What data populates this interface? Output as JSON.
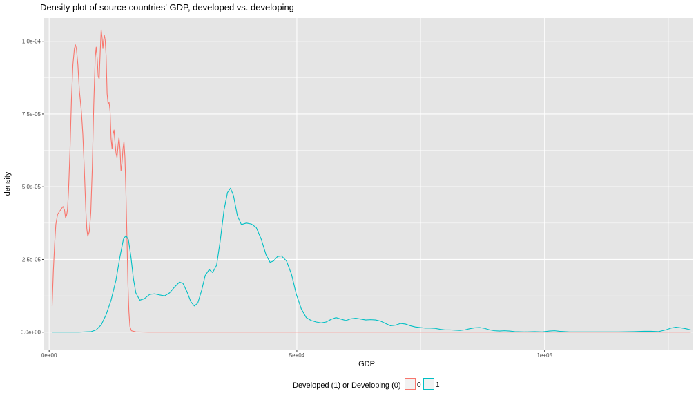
{
  "chart_data": {
    "type": "line",
    "title": "Density plot of source countries' GDP, developed vs. developing",
    "xlabel": "GDP",
    "ylabel": "density",
    "xlim": [
      -1000,
      130000
    ],
    "ylim": [
      -6e-06,
      0.000108
    ],
    "x_ticks": [
      {
        "value": 0,
        "label": "0e+00"
      },
      {
        "value": 50000,
        "label": "5e+04"
      },
      {
        "value": 100000,
        "label": "1e+05"
      }
    ],
    "x_minor_ticks": [
      25000,
      75000,
      125000
    ],
    "y_ticks": [
      {
        "value": 0,
        "label": "0.0e+00"
      },
      {
        "value": 2.5e-05,
        "label": "2.5e-05"
      },
      {
        "value": 5e-05,
        "label": "5.0e-05"
      },
      {
        "value": 7.5e-05,
        "label": "7.5e-05"
      },
      {
        "value": 0.0001,
        "label": "1.0e-04"
      }
    ],
    "y_minor_ticks": [
      1.25e-05,
      3.75e-05,
      6.25e-05,
      8.75e-05
    ],
    "grid": true,
    "colors": {
      "panel_bg": "#e5e5e5",
      "grid": "#ffffff",
      "series_0": "#f8766d",
      "series_1": "#00bfc4"
    },
    "legend": {
      "title": "Developed (1) or Developing (0)",
      "position": "bottom",
      "entries": [
        {
          "label": "0",
          "color": "#f8766d"
        },
        {
          "label": "1",
          "color": "#00bfc4"
        }
      ]
    },
    "series": [
      {
        "name": "0",
        "color": "#f8766d",
        "points": [
          [
            600,
            9e-06
          ],
          [
            850,
            2.1e-05
          ],
          [
            1100,
            3e-05
          ],
          [
            1350,
            3.7e-05
          ],
          [
            1700,
            4.05e-05
          ],
          [
            2100,
            4.15e-05
          ],
          [
            2500,
            4.25e-05
          ],
          [
            2800,
            4.32e-05
          ],
          [
            3100,
            4.2e-05
          ],
          [
            3300,
            3.95e-05
          ],
          [
            3500,
            4e-05
          ],
          [
            3700,
            4.2e-05
          ],
          [
            3900,
            4.8e-05
          ],
          [
            4200,
            6.2e-05
          ],
          [
            4500,
            8e-05
          ],
          [
            4800,
            9.2e-05
          ],
          [
            5100,
            9.75e-05
          ],
          [
            5300,
            9.88e-05
          ],
          [
            5500,
            9.75e-05
          ],
          [
            5800,
            9.2e-05
          ],
          [
            6100,
            8.3e-05
          ],
          [
            6500,
            7.6e-05
          ],
          [
            6800,
            6.8e-05
          ],
          [
            7100,
            5.6e-05
          ],
          [
            7400,
            4.2e-05
          ],
          [
            7600,
            3.55e-05
          ],
          [
            7800,
            3.3e-05
          ],
          [
            8100,
            3.45e-05
          ],
          [
            8400,
            4.1e-05
          ],
          [
            8700,
            5.6e-05
          ],
          [
            9000,
            7.8e-05
          ],
          [
            9300,
            9.45e-05
          ],
          [
            9500,
            9.8e-05
          ],
          [
            9700,
            9.4e-05
          ],
          [
            9900,
            8.8e-05
          ],
          [
            10100,
            8.7e-05
          ],
          [
            10300,
            9.6e-05
          ],
          [
            10500,
            0.000104
          ],
          [
            10700,
            0.000101
          ],
          [
            10850,
            9.75e-05
          ],
          [
            11000,
            0.0001005
          ],
          [
            11150,
            0.000102
          ],
          [
            11300,
            0.0001005
          ],
          [
            11500,
            9.5e-05
          ],
          [
            11700,
            8.2e-05
          ],
          [
            11900,
            7.85e-05
          ],
          [
            12100,
            7.9e-05
          ],
          [
            12300,
            7.6e-05
          ],
          [
            12500,
            6.65e-05
          ],
          [
            12700,
            6.3e-05
          ],
          [
            12900,
            6.8e-05
          ],
          [
            13100,
            6.95e-05
          ],
          [
            13300,
            6.5e-05
          ],
          [
            13500,
            6.15e-05
          ],
          [
            13700,
            6e-05
          ],
          [
            13900,
            6.4e-05
          ],
          [
            14100,
            6.7e-05
          ],
          [
            14300,
            6.3e-05
          ],
          [
            14500,
            5.55e-05
          ],
          [
            14700,
            5.8e-05
          ],
          [
            14900,
            6.3e-05
          ],
          [
            15100,
            6.55e-05
          ],
          [
            15300,
            6e-05
          ],
          [
            15500,
            4.8e-05
          ],
          [
            15700,
            3.3e-05
          ],
          [
            15900,
            1.7e-05
          ],
          [
            16100,
            7e-06
          ],
          [
            16300,
            2e-06
          ],
          [
            16600,
            5e-07
          ],
          [
            17500,
            1e-07
          ],
          [
            20000,
            0
          ],
          [
            40000,
            0
          ],
          [
            60000,
            0
          ],
          [
            80000,
            0
          ],
          [
            100000,
            0
          ],
          [
            129500,
            0
          ]
        ]
      },
      {
        "name": "1",
        "color": "#00bfc4",
        "points": [
          [
            600,
            0
          ],
          [
            6000,
            0
          ],
          [
            8500,
            2e-07
          ],
          [
            9500,
            8e-07
          ],
          [
            10500,
            2.5e-06
          ],
          [
            11500,
            6e-06
          ],
          [
            12500,
            1.1e-05
          ],
          [
            13500,
            1.8e-05
          ],
          [
            14300,
            2.6e-05
          ],
          [
            15000,
            3.2e-05
          ],
          [
            15500,
            3.32e-05
          ],
          [
            16000,
            3.18e-05
          ],
          [
            16500,
            2.6e-05
          ],
          [
            17000,
            1.85e-05
          ],
          [
            17500,
            1.35e-05
          ],
          [
            18300,
            1.1e-05
          ],
          [
            19200,
            1.15e-05
          ],
          [
            20300,
            1.3e-05
          ],
          [
            21300,
            1.32e-05
          ],
          [
            22300,
            1.28e-05
          ],
          [
            23300,
            1.25e-05
          ],
          [
            24300,
            1.35e-05
          ],
          [
            25300,
            1.55e-05
          ],
          [
            26300,
            1.72e-05
          ],
          [
            27000,
            1.68e-05
          ],
          [
            27800,
            1.4e-05
          ],
          [
            28600,
            1.05e-05
          ],
          [
            29300,
            9e-06
          ],
          [
            30000,
            1e-05
          ],
          [
            30800,
            1.45e-05
          ],
          [
            31500,
            1.95e-05
          ],
          [
            32300,
            2.15e-05
          ],
          [
            33000,
            2.05e-05
          ],
          [
            33800,
            2.3e-05
          ],
          [
            34500,
            3.1e-05
          ],
          [
            35300,
            4.2e-05
          ],
          [
            36000,
            4.8e-05
          ],
          [
            36600,
            4.95e-05
          ],
          [
            37200,
            4.7e-05
          ],
          [
            38000,
            4e-05
          ],
          [
            38800,
            3.7e-05
          ],
          [
            39800,
            3.75e-05
          ],
          [
            40800,
            3.72e-05
          ],
          [
            41800,
            3.6e-05
          ],
          [
            42800,
            3.2e-05
          ],
          [
            43800,
            2.65e-05
          ],
          [
            44600,
            2.4e-05
          ],
          [
            45300,
            2.45e-05
          ],
          [
            46100,
            2.6e-05
          ],
          [
            46900,
            2.62e-05
          ],
          [
            47900,
            2.45e-05
          ],
          [
            48900,
            2e-05
          ],
          [
            49900,
            1.3e-05
          ],
          [
            50900,
            8e-06
          ],
          [
            51900,
            5e-06
          ],
          [
            52900,
            4e-06
          ],
          [
            53900,
            3.5e-06
          ],
          [
            54900,
            3.2e-06
          ],
          [
            55900,
            3.5e-06
          ],
          [
            56900,
            4.4e-06
          ],
          [
            57900,
            5e-06
          ],
          [
            58900,
            4.5e-06
          ],
          [
            59900,
            4e-06
          ],
          [
            60900,
            4.6e-06
          ],
          [
            61900,
            4.8e-06
          ],
          [
            62900,
            4.5e-06
          ],
          [
            63900,
            4.2e-06
          ],
          [
            64900,
            4.3e-06
          ],
          [
            65900,
            4.2e-06
          ],
          [
            66900,
            3.8e-06
          ],
          [
            67900,
            3e-06
          ],
          [
            68900,
            2.2e-06
          ],
          [
            69900,
            2.4e-06
          ],
          [
            70900,
            3e-06
          ],
          [
            71900,
            2.8e-06
          ],
          [
            72900,
            2.2e-06
          ],
          [
            73900,
            1.8e-06
          ],
          [
            74900,
            1.6e-06
          ],
          [
            75900,
            1.4e-06
          ],
          [
            76900,
            1.4e-06
          ],
          [
            77900,
            1.3e-06
          ],
          [
            78900,
            1e-06
          ],
          [
            79900,
            8e-07
          ],
          [
            80900,
            8e-07
          ],
          [
            81900,
            7e-07
          ],
          [
            82900,
            6e-07
          ],
          [
            83900,
            8e-07
          ],
          [
            84900,
            1.2e-06
          ],
          [
            85900,
            1.5e-06
          ],
          [
            86900,
            1.6e-06
          ],
          [
            87900,
            1.3e-06
          ],
          [
            88900,
            8e-07
          ],
          [
            89900,
            5e-07
          ],
          [
            90900,
            4e-07
          ],
          [
            91900,
            5e-07
          ],
          [
            92900,
            4e-07
          ],
          [
            94000,
            2e-07
          ],
          [
            96000,
            1e-07
          ],
          [
            98000,
            2e-07
          ],
          [
            99500,
            1e-07
          ],
          [
            101000,
            4e-07
          ],
          [
            102000,
            5e-07
          ],
          [
            103000,
            3e-07
          ],
          [
            105000,
            1e-07
          ],
          [
            110000,
            1e-07
          ],
          [
            115000,
            1e-07
          ],
          [
            118000,
            2e-07
          ],
          [
            120000,
            3e-07
          ],
          [
            121500,
            3e-07
          ],
          [
            123000,
            2e-07
          ],
          [
            124500,
            8e-07
          ],
          [
            125500,
            1.4e-06
          ],
          [
            126500,
            1.7e-06
          ],
          [
            127500,
            1.5e-06
          ],
          [
            128500,
            1.2e-06
          ],
          [
            129500,
            8e-07
          ]
        ]
      }
    ]
  }
}
